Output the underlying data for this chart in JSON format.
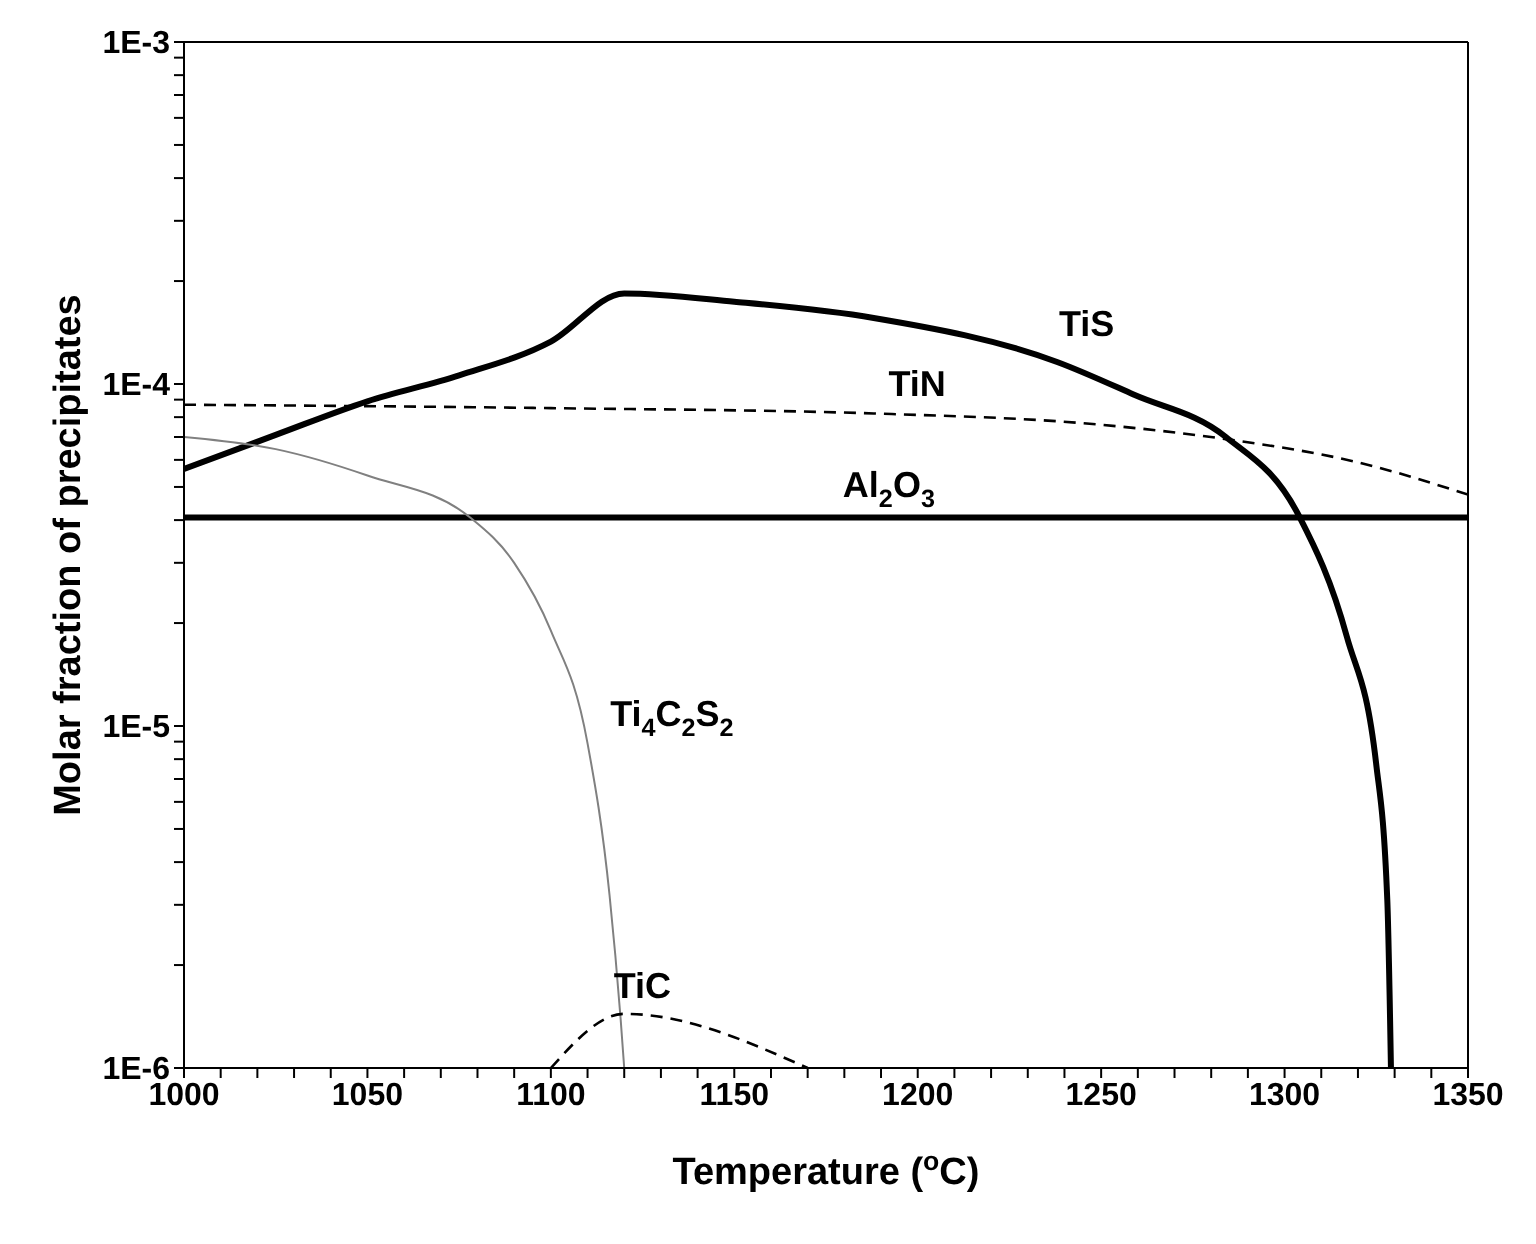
{
  "chart_data": {
    "type": "line",
    "xlabel": "Temperature ($^{o}$C)",
    "ylabel": "Molar fraction of precipitates",
    "log": "y",
    "xlim": [
      1000,
      1350
    ],
    "xticks": [
      1000,
      {
        "value": 1010,
        "label": null
      },
      {
        "value": 1020,
        "label": null
      },
      {
        "value": 1030,
        "label": null
      },
      {
        "value": 1040,
        "label": null
      },
      1050,
      {
        "value": 1060,
        "label": null
      },
      {
        "value": 1070,
        "label": null
      },
      {
        "value": 1080,
        "label": null
      },
      {
        "value": 1090,
        "label": null
      },
      1100,
      {
        "value": 1110,
        "label": null
      },
      {
        "value": 1120,
        "label": null
      },
      {
        "value": 1130,
        "label": null
      },
      {
        "value": 1140,
        "label": null
      },
      1150,
      {
        "value": 1160,
        "label": null
      },
      {
        "value": 1170,
        "label": null
      },
      {
        "value": 1180,
        "label": null
      },
      {
        "value": 1190,
        "label": null
      },
      1200,
      {
        "value": 1210,
        "label": null
      },
      {
        "value": 1220,
        "label": null
      },
      {
        "value": 1230,
        "label": null
      },
      {
        "value": 1240,
        "label": null
      },
      1250,
      {
        "value": 1260,
        "label": null
      },
      {
        "value": 1270,
        "label": null
      },
      {
        "value": 1280,
        "label": null
      },
      {
        "value": 1290,
        "label": null
      },
      1300,
      {
        "value": 1310,
        "label": null
      },
      {
        "value": 1320,
        "label": null
      },
      {
        "value": 1330,
        "label": null
      },
      {
        "value": 1340,
        "label": null
      },
      1350
    ],
    "ylim": [
      1e-06,
      0.001
    ],
    "yticks": [
      {
        "value": 1e-06,
        "label": "1E-6"
      },
      {
        "value": 2e-06,
        "label": null
      },
      {
        "value": 3e-06,
        "label": null
      },
      {
        "value": 4e-06,
        "label": null
      },
      {
        "value": 5e-06,
        "label": null
      },
      {
        "value": 6e-06,
        "label": null
      },
      {
        "value": 7e-06,
        "label": null
      },
      {
        "value": 8e-06,
        "label": null
      },
      {
        "value": 9e-06,
        "label": null
      },
      {
        "value": 1e-05,
        "label": "1E-5"
      },
      {
        "value": 2e-05,
        "label": null
      },
      {
        "value": 3e-05,
        "label": null
      },
      {
        "value": 4e-05,
        "label": null
      },
      {
        "value": 5e-05,
        "label": null
      },
      {
        "value": 6e-05,
        "label": null
      },
      {
        "value": 7e-05,
        "label": null
      },
      {
        "value": 8e-05,
        "label": null
      },
      {
        "value": 9e-05,
        "label": null
      },
      {
        "value": 0.0001,
        "label": "1E-4"
      },
      {
        "value": 0.0002,
        "label": null
      },
      {
        "value": 0.0003,
        "label": null
      },
      {
        "value": 0.0004,
        "label": null
      },
      {
        "value": 0.0005,
        "label": null
      },
      {
        "value": 0.0006,
        "label": null
      },
      {
        "value": 0.0007,
        "label": null
      },
      {
        "value": 0.0008,
        "label": null
      },
      {
        "value": 0.0009,
        "label": null
      },
      {
        "value": 0.001,
        "label": "1E-3"
      }
    ],
    "marker": "none",
    "series": [
      {
        "name": "TiS",
        "color": "#000000",
        "line_style": "solid",
        "x": [
          1000,
          1025,
          1050,
          1075,
          1100,
          1120,
          1150,
          1188,
          1238,
          1259,
          1284,
          1304,
          1317,
          1325,
          1328,
          1329
        ],
        "values": [
          5.64e-05,
          7.1e-05,
          8.9e-05,
          0.000106,
          0.000133,
          0.000184,
          0.000174,
          0.000156,
          0.000116,
          9.3e-05,
          7e-05,
          4.1e-05,
          1.82e-05,
          7.7e-06,
          3.1e-06,
          1e-06
        ]
      },
      {
        "name": "TiN",
        "color": "#000000",
        "line_style": "dashed",
        "x": [
          1000,
          1100,
          1188,
          1250,
          1284,
          1320,
          1350
        ],
        "values": [
          8.7e-05,
          8.5e-05,
          8.2e-05,
          7.6e-05,
          6.9e-05,
          5.9e-05,
          4.75e-05
        ]
      },
      {
        "name": "Al$_{2}$O$_{3}$",
        "color": "#000000",
        "line_style": "solid",
        "x": [
          1000,
          1350
        ],
        "values": [
          4.07e-05,
          4.07e-05
        ]
      },
      {
        "name": "Ti$_{4}$C$_{2}$S$_{2}$",
        "color": "#808080",
        "line_style": "solid",
        "x": [
          1000,
          1025,
          1050,
          1078,
          1090,
          1100,
          1110,
          1116,
          1119,
          1120
        ],
        "values": [
          7e-05,
          6.45e-05,
          5.4e-05,
          4.07e-05,
          3e-05,
          1.9e-05,
          8.9e-06,
          3.2e-06,
          1.4e-06,
          1e-06
        ]
      },
      {
        "name": "TiC",
        "color": "#000000",
        "line_style": "dashed",
        "x": [
          1100,
          1120,
          1170
        ],
        "values": [
          1e-06,
          1.44e-06,
          1e-06
        ]
      }
    ]
  }
}
